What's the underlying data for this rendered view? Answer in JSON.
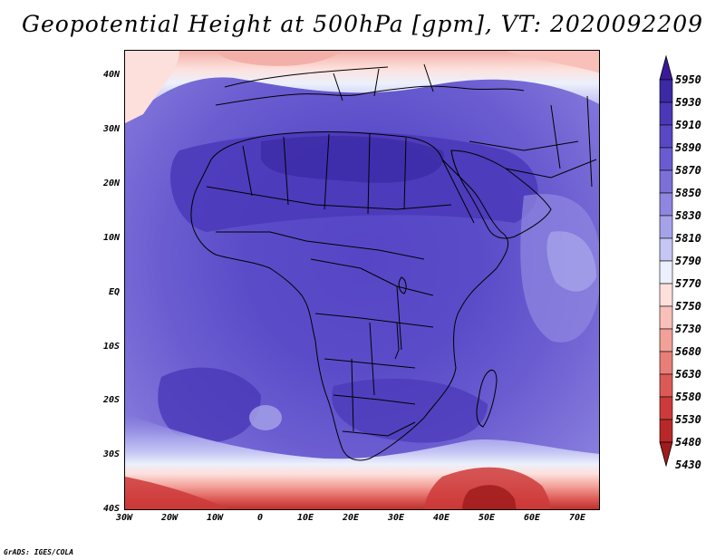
{
  "title": "Geopotential Height at 500hPa [gpm], VT: 2020092209",
  "footer": "GrADS: IGES/COLA",
  "lat_labels": [
    "40N",
    "30N",
    "20N",
    "10N",
    "EQ",
    "10S",
    "20S",
    "30S",
    "40S"
  ],
  "lon_labels": [
    "30W",
    "20W",
    "10W",
    "0",
    "10E",
    "20E",
    "30E",
    "40E",
    "50E",
    "60E",
    "70E"
  ],
  "colorbar": {
    "levels": [
      "5950",
      "5930",
      "5910",
      "5890",
      "5870",
      "5850",
      "5830",
      "5810",
      "5790",
      "5770",
      "5750",
      "5730",
      "5680",
      "5630",
      "5580",
      "5530",
      "5480",
      "5430"
    ],
    "colors": [
      "#3a1a9a",
      "#3b2aa4",
      "#4a38b8",
      "#5848c4",
      "#6a5cd0",
      "#7c70d8",
      "#8e86e0",
      "#a6a2ea",
      "#c6c6f4",
      "#ecf0fc",
      "#fde0dc",
      "#f8c0b8",
      "#f2a098",
      "#e87e78",
      "#dc5a56",
      "#cc3a3a",
      "#b82828",
      "#a01c1c"
    ]
  },
  "map": {
    "region": "Africa",
    "lon_range": [
      -30,
      75
    ],
    "lat_range": [
      -40,
      45
    ]
  }
}
